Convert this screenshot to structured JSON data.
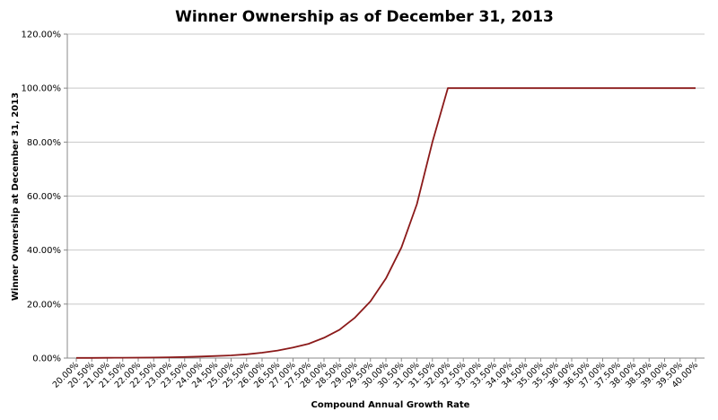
{
  "chart_data": {
    "type": "line",
    "title": "Winner Ownership as of December 31, 2013",
    "xlabel": "Compound Annual Growth Rate",
    "ylabel": "Winner Ownership at December 31, 2013",
    "ylim": [
      0,
      120
    ],
    "yticks": [
      "0.00%",
      "20.00%",
      "40.00%",
      "60.00%",
      "80.00%",
      "100.00%",
      "120.00%"
    ],
    "grid": "horizontal",
    "legend": "none",
    "categories": [
      "20.00%",
      "20.50%",
      "21.00%",
      "21.50%",
      "22.00%",
      "22.50%",
      "23.00%",
      "23.50%",
      "24.00%",
      "24.50%",
      "25.00%",
      "25.50%",
      "26.00%",
      "26.50%",
      "27.00%",
      "27.50%",
      "28.00%",
      "28.50%",
      "29.00%",
      "29.50%",
      "30.00%",
      "30.50%",
      "31.00%",
      "31.50%",
      "32.00%",
      "32.50%",
      "33.00%",
      "33.50%",
      "34.00%",
      "34.50%",
      "35.00%",
      "35.50%",
      "36.00%",
      "36.50%",
      "37.00%",
      "37.50%",
      "38.00%",
      "38.50%",
      "39.00%",
      "39.50%",
      "40.00%"
    ],
    "series": [
      {
        "color": "#8b1a1a",
        "values": [
          0.05,
          0.07,
          0.1,
          0.12,
          0.15,
          0.2,
          0.3,
          0.4,
          0.55,
          0.75,
          1.0,
          1.4,
          2.0,
          2.8,
          3.9,
          5.3,
          7.5,
          10.5,
          15.0,
          21.0,
          29.5,
          41.0,
          57.0,
          80.0,
          100,
          100,
          100,
          100,
          100,
          100,
          100,
          100,
          100,
          100,
          100,
          100,
          100,
          100,
          100,
          100,
          100
        ]
      }
    ]
  }
}
